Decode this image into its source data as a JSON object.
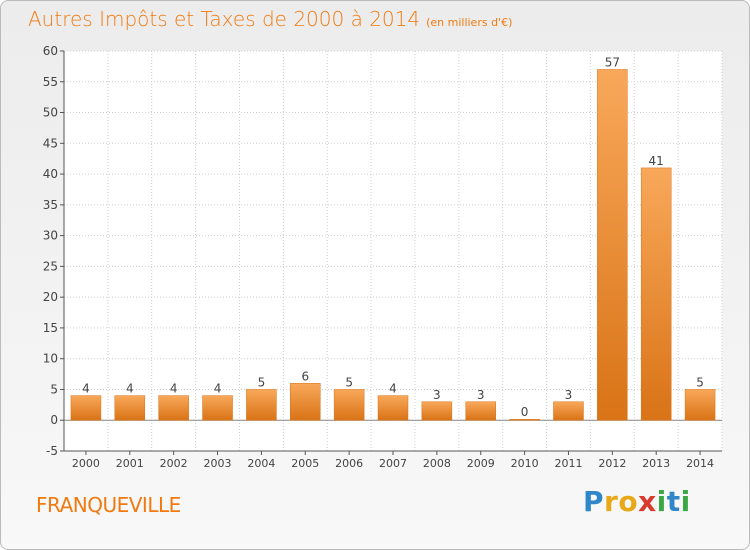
{
  "title": "Autres Impôts et Taxes de 2000 à 2014",
  "subtitle": "(en milliers d'€)",
  "location": "FRANQUEVILLE",
  "brand": {
    "name": "Proxiti",
    "letters": [
      {
        "char": "P",
        "color": "#2f86c8"
      },
      {
        "char": "r",
        "color": "#e8a81a"
      },
      {
        "char": "o",
        "color": "#e8a81a"
      },
      {
        "char": "x",
        "color": "#d83a2e"
      },
      {
        "char": "i",
        "color": "#3aa844"
      },
      {
        "char": "t",
        "color": "#2f86c8"
      },
      {
        "char": "i",
        "color": "#3aa844"
      }
    ]
  },
  "colors": {
    "accent": "#f07a10",
    "bar_light": "#f8a85a",
    "bar_dark": "#d97316",
    "grid": "#cfcfcf"
  },
  "chart_data": {
    "type": "bar",
    "categories": [
      "2000",
      "2001",
      "2002",
      "2003",
      "2004",
      "2005",
      "2006",
      "2007",
      "2008",
      "2009",
      "2010",
      "2011",
      "2012",
      "2013",
      "2014"
    ],
    "values": [
      4,
      4,
      4,
      4,
      5,
      6,
      5,
      4,
      3,
      3,
      0,
      3,
      57,
      41,
      5
    ],
    "title": "Autres Impôts et Taxes de 2000 à 2014",
    "subtitle": "(en milliers d'€)",
    "xlabel": "",
    "ylabel": "",
    "ylim": [
      -5,
      60
    ],
    "yticks": [
      -5,
      0,
      5,
      10,
      15,
      20,
      25,
      30,
      35,
      40,
      45,
      50,
      55,
      60
    ],
    "grid": true,
    "legend": "none"
  }
}
